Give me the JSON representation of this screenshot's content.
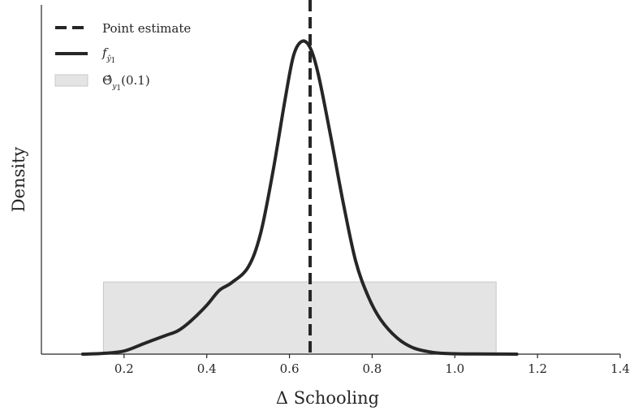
{
  "chart_data": {
    "type": "line",
    "title": "",
    "xlabel": "Δ Schooling",
    "ylabel": "Density",
    "xlim": [
      0.0,
      1.4
    ],
    "ylim": [
      0,
      4.5
    ],
    "xticks": [
      0.2,
      0.4,
      0.6,
      0.8,
      1.0,
      1.2,
      1.4
    ],
    "xtick_labels": [
      "0.2",
      "0.4",
      "0.6",
      "0.8",
      "1.0",
      "1.2",
      "1.4"
    ],
    "grid": false,
    "legend_position": "top-left",
    "point_estimate": 0.65,
    "interval": [
      0.15,
      1.1
    ],
    "interval_height": 0.93,
    "series": [
      {
        "name_parts": [
          "f",
          "ŷ",
          "1"
        ],
        "style": "solid",
        "x": [
          0.1,
          0.15,
          0.2,
          0.25,
          0.3,
          0.33,
          0.36,
          0.4,
          0.43,
          0.46,
          0.5,
          0.53,
          0.56,
          0.59,
          0.61,
          0.63,
          0.65,
          0.67,
          0.7,
          0.73,
          0.76,
          0.79,
          0.82,
          0.86,
          0.9,
          0.95,
          1.0,
          1.05,
          1.1,
          1.15
        ],
        "y": [
          0.0,
          0.01,
          0.04,
          0.14,
          0.24,
          0.3,
          0.42,
          0.63,
          0.82,
          0.92,
          1.12,
          1.55,
          2.35,
          3.3,
          3.85,
          4.03,
          3.95,
          3.6,
          2.8,
          1.95,
          1.2,
          0.75,
          0.45,
          0.21,
          0.08,
          0.02,
          0.005,
          0.002,
          0.001,
          0.0
        ]
      }
    ],
    "legend": [
      {
        "label": "Point estimate"
      },
      {
        "label_parts": [
          "f",
          "ŷ",
          "1"
        ]
      },
      {
        "label_parts": [
          "Θ̂",
          "y",
          "1",
          "(0.1)"
        ]
      }
    ],
    "colors": {
      "line": "#262626",
      "band_fill": "#e4e4e4",
      "band_edge": "#c8c8c8",
      "axis": "#262626"
    }
  }
}
